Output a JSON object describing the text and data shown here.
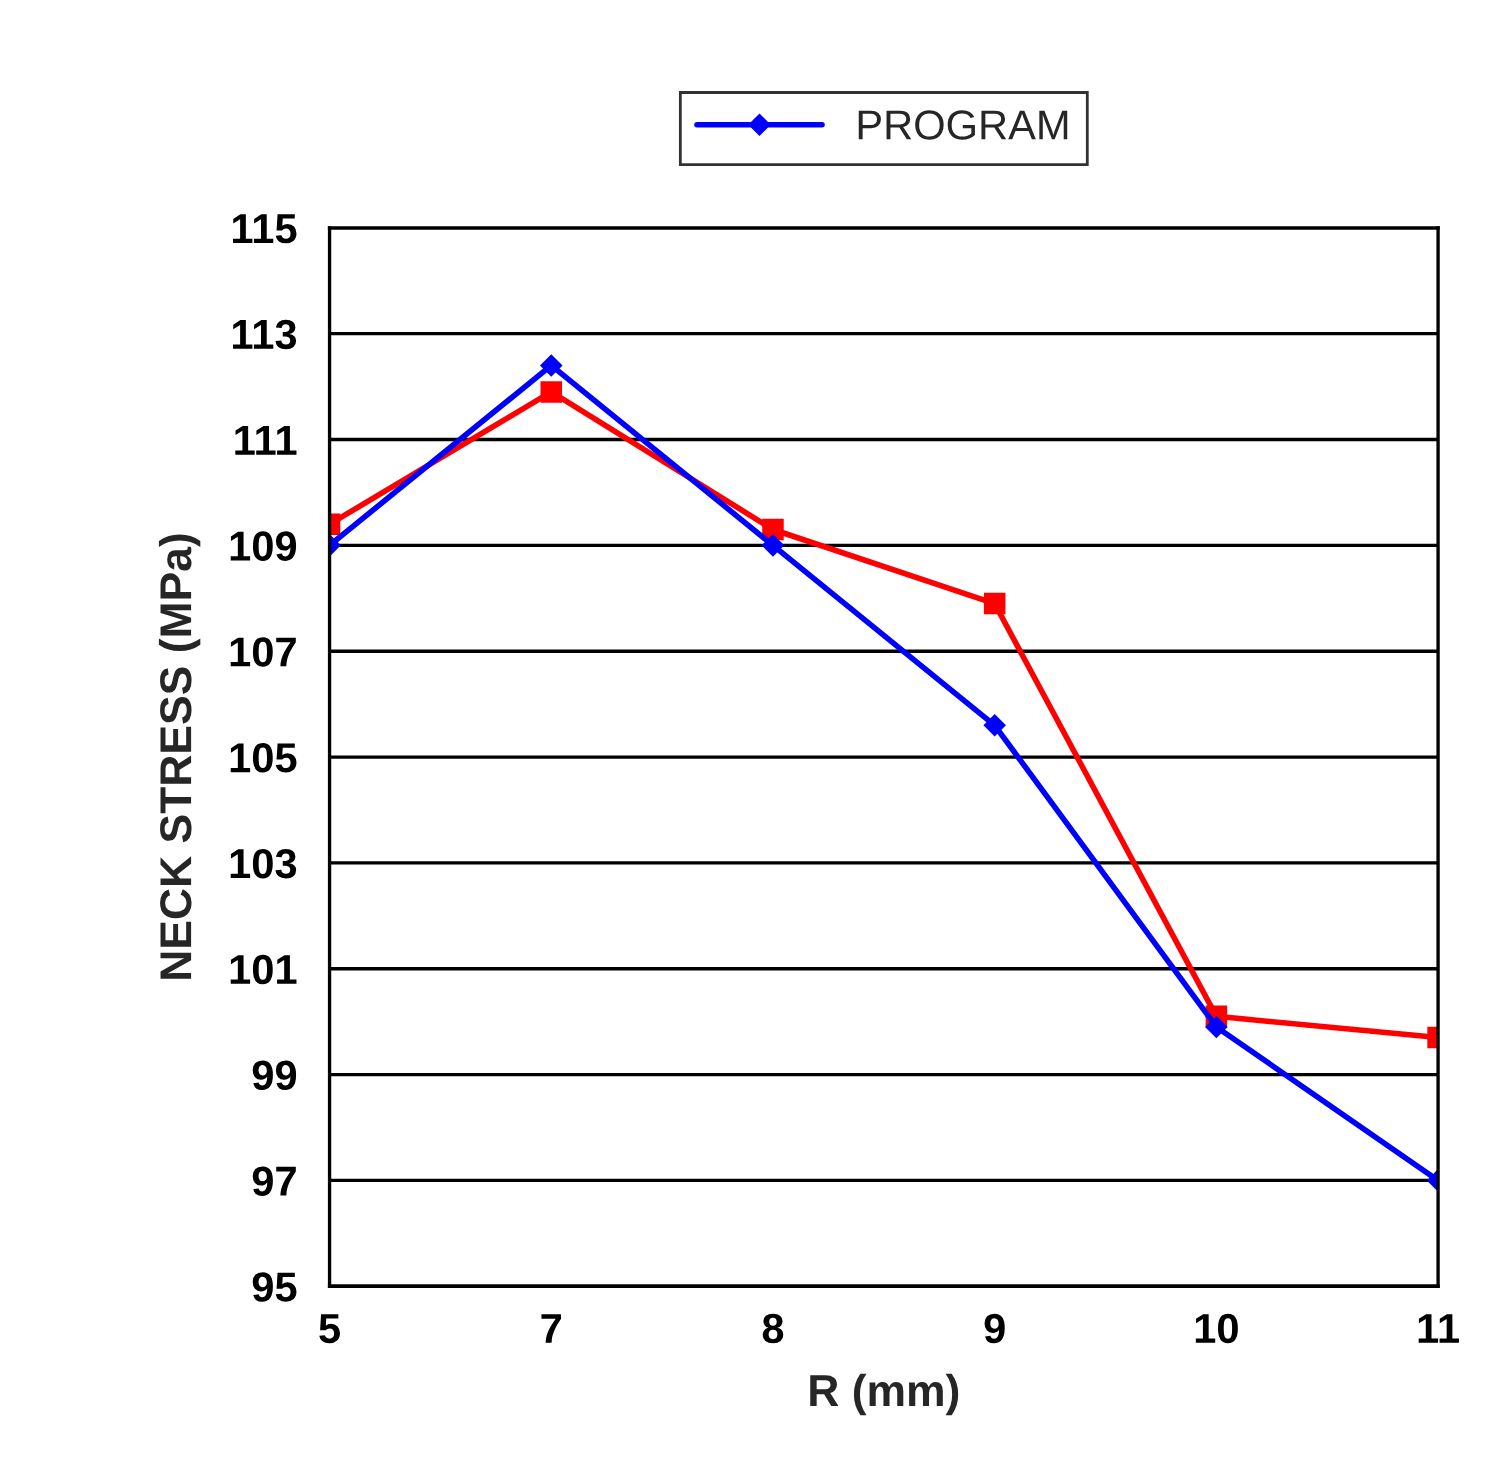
{
  "chart_data": {
    "type": "line",
    "xlabel": "R (mm)",
    "ylabel": "NECK STRESS (MPa)",
    "categories": [
      "5",
      "7",
      "8",
      "9",
      "10",
      "11"
    ],
    "series": [
      {
        "color": "#ff0000",
        "marker": "square",
        "values": [
          109.4,
          111.9,
          109.3,
          107.9,
          100.1,
          99.7
        ]
      },
      {
        "name": "PROGRAM",
        "color": "#0000ff",
        "marker": "diamond",
        "values": [
          109.0,
          112.4,
          109.0,
          105.6,
          99.9,
          97.0
        ]
      }
    ],
    "ylim": [
      95,
      115
    ],
    "yticks": [
      95,
      97,
      99,
      101,
      103,
      105,
      107,
      109,
      111,
      113,
      115
    ],
    "grid": "y",
    "legend": "top",
    "line_style": "solid"
  }
}
